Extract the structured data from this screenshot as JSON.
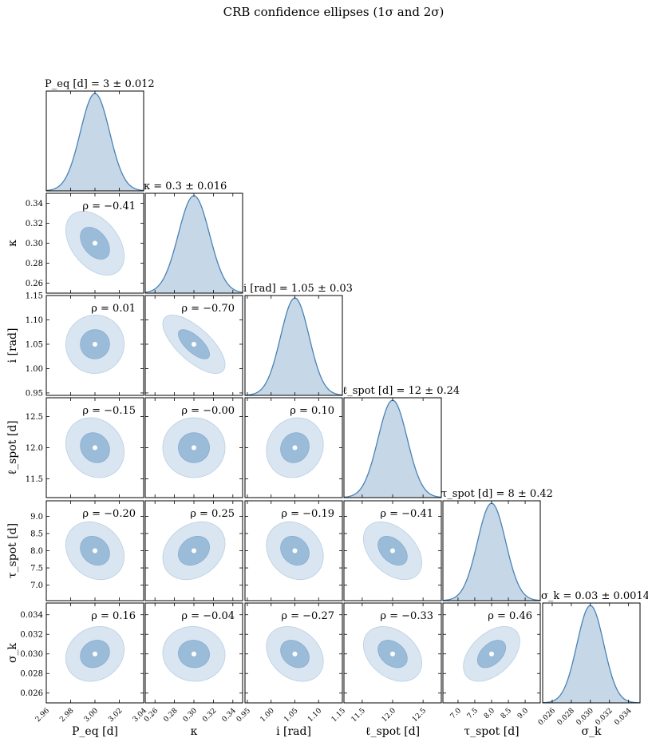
{
  "figure": {
    "title": "CRB confidence ellipses (1σ and 2σ)"
  },
  "colors": {
    "fill_2sigma": "#d9e5f0",
    "fill_1sigma": "#9bbcd9",
    "curve": "#4a82b4",
    "curve_fill": "#c6d8e8",
    "center": "#ffffff"
  },
  "chart_data": {
    "type": "corner",
    "params": [
      {
        "key": "P",
        "label": "P_eq [d]",
        "mean": 3.0,
        "sigma": 0.012,
        "diag_title": "P_eq [d] = 3 ± 0.012",
        "xlim": [
          2.96,
          3.04
        ],
        "ticks": [
          2.96,
          2.98,
          3.0,
          3.02,
          3.04
        ],
        "tick_labels": [
          "2.96",
          "2.98",
          "3.00",
          "3.02",
          "3.04"
        ]
      },
      {
        "key": "k",
        "label": "κ",
        "mean": 0.3,
        "sigma": 0.016,
        "diag_title": "κ = 0.3 ± 0.016",
        "xlim": [
          0.25,
          0.35
        ],
        "ticks": [
          0.26,
          0.28,
          0.3,
          0.32,
          0.34
        ],
        "tick_labels": [
          "0.26",
          "0.28",
          "0.30",
          "0.32",
          "0.34"
        ]
      },
      {
        "key": "i",
        "label": "i [rad]",
        "mean": 1.05,
        "sigma": 0.03,
        "diag_title": "i [rad] = 1.05 ± 0.03",
        "xlim": [
          0.945,
          1.15
        ],
        "ticks": [
          0.95,
          1.0,
          1.05,
          1.1,
          1.15
        ],
        "tick_labels": [
          "0.95",
          "1.00",
          "1.05",
          "1.10",
          "1.15"
        ]
      },
      {
        "key": "l",
        "label": "ℓ_spot [d]",
        "mean": 12.0,
        "sigma": 0.24,
        "diag_title": "ℓ_spot [d] = 12 ± 0.24",
        "xlim": [
          11.2,
          12.8
        ],
        "ticks": [
          11.5,
          12.0,
          12.5
        ],
        "tick_labels": [
          "11.5",
          "12.0",
          "12.5"
        ]
      },
      {
        "key": "t",
        "label": "τ_spot [d]",
        "mean": 8.0,
        "sigma": 0.42,
        "diag_title": "τ_spot [d] = 8 ± 0.42",
        "xlim": [
          6.55,
          9.45
        ],
        "ticks": [
          7.0,
          7.5,
          8.0,
          8.5,
          9.0
        ],
        "tick_labels": [
          "7.0",
          "7.5",
          "8.0",
          "8.5",
          "9.0"
        ]
      },
      {
        "key": "s",
        "label": "σ_k",
        "mean": 0.03,
        "sigma": 0.0014,
        "diag_title": "σ_k = 0.03 ± 0.0014",
        "xlim": [
          0.025,
          0.0352
        ],
        "ticks": [
          0.026,
          0.028,
          0.03,
          0.032,
          0.034
        ],
        "tick_labels": [
          "0.026",
          "0.028",
          "0.030",
          "0.032",
          "0.034"
        ]
      }
    ],
    "correlations": [
      {
        "row": 1,
        "col": 0,
        "rho": -0.41,
        "label": "ρ = −0.41"
      },
      {
        "row": 2,
        "col": 0,
        "rho": 0.01,
        "label": "ρ = 0.01"
      },
      {
        "row": 2,
        "col": 1,
        "rho": -0.7,
        "label": "ρ = −0.70"
      },
      {
        "row": 3,
        "col": 0,
        "rho": -0.15,
        "label": "ρ = −0.15"
      },
      {
        "row": 3,
        "col": 1,
        "rho": -0.0,
        "label": "ρ = −0.00"
      },
      {
        "row": 3,
        "col": 2,
        "rho": 0.1,
        "label": "ρ = 0.10"
      },
      {
        "row": 4,
        "col": 0,
        "rho": -0.2,
        "label": "ρ = −0.20"
      },
      {
        "row": 4,
        "col": 1,
        "rho": 0.25,
        "label": "ρ = 0.25"
      },
      {
        "row": 4,
        "col": 2,
        "rho": -0.19,
        "label": "ρ = −0.19"
      },
      {
        "row": 4,
        "col": 3,
        "rho": -0.41,
        "label": "ρ = −0.41"
      },
      {
        "row": 5,
        "col": 0,
        "rho": 0.16,
        "label": "ρ = 0.16"
      },
      {
        "row": 5,
        "col": 1,
        "rho": -0.04,
        "label": "ρ = −0.04"
      },
      {
        "row": 5,
        "col": 2,
        "rho": -0.27,
        "label": "ρ = −0.27"
      },
      {
        "row": 5,
        "col": 3,
        "rho": -0.33,
        "label": "ρ = −0.33"
      },
      {
        "row": 5,
        "col": 4,
        "rho": 0.46,
        "label": "ρ = 0.46"
      }
    ],
    "contours": [
      "1σ",
      "2σ"
    ]
  }
}
